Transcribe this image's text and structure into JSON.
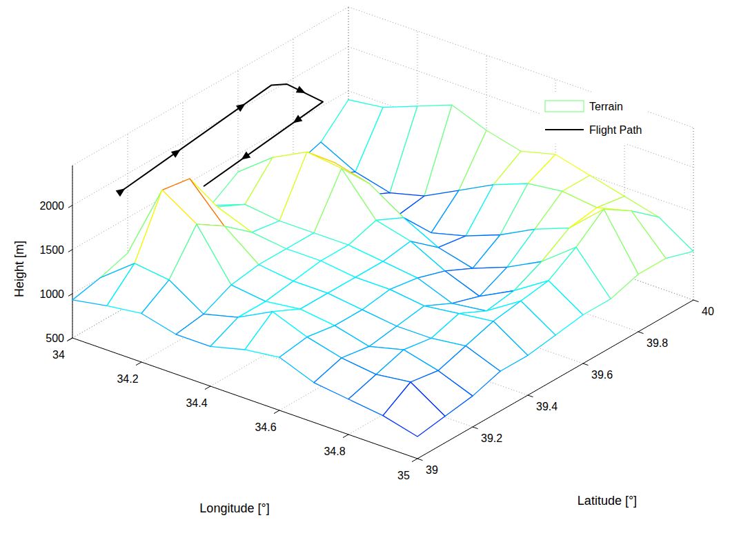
{
  "chart_data": {
    "type": "mesh3d",
    "x_label": "Longitude [°]",
    "y_label": "Latitude [°]",
    "z_label": "Height [m]",
    "xlim": [
      34,
      35
    ],
    "xticks": [
      34,
      34.2,
      34.4,
      34.6,
      34.8,
      35
    ],
    "ylim": [
      39,
      40
    ],
    "yticks": [
      39,
      39.2,
      39.4,
      39.6,
      39.8,
      40
    ],
    "zlim": [
      500,
      2450
    ],
    "zticks": [
      500,
      1000,
      1500,
      2000
    ],
    "grid": true,
    "legend": "northeast",
    "series": [
      {
        "name": "Terrain",
        "type": "mesh",
        "color": "jet",
        "color_range": [
          600,
          2100
        ],
        "x": [
          34,
          34.1,
          34.2,
          34.3,
          34.4,
          34.5,
          34.6,
          34.7,
          34.8,
          34.9,
          35
        ],
        "y": [
          39,
          39.1,
          39.2,
          39.3,
          39.4,
          39.5,
          39.6,
          39.7,
          39.8,
          39.9,
          40
        ],
        "z": [
          [
            930,
            1000,
            1050,
            950,
            950,
            1050,
            1100,
            950,
            900,
            850,
            750
          ],
          [
            1000,
            1300,
            1250,
            1000,
            1100,
            1300,
            1150,
            1050,
            1000,
            1050,
            800
          ],
          [
            1100,
            1950,
            1700,
            1150,
            1100,
            1150,
            1100,
            1000,
            1100,
            1000,
            850
          ],
          [
            1150,
            1900,
            1500,
            1200,
            1150,
            1150,
            1100,
            1050,
            1050,
            1100,
            950
          ],
          [
            1050,
            1400,
            1250,
            1200,
            1200,
            1150,
            1150,
            1100,
            1150,
            1200,
            950
          ],
          [
            1100,
            1250,
            1200,
            1200,
            1200,
            1150,
            1100,
            950,
            1000,
            1250,
            1000
          ],
          [
            1300,
            1600,
            1800,
            1750,
            1300,
            1200,
            1000,
            850,
            1050,
            1300,
            1050
          ],
          [
            1150,
            1350,
            1500,
            1400,
            1150,
            950,
            850,
            1000,
            1200,
            1500,
            1050
          ],
          [
            1000,
            1050,
            950,
            850,
            800,
            900,
            1050,
            1250,
            1400,
            1750,
            1150
          ],
          [
            1100,
            900,
            800,
            900,
            1100,
            1300,
            1450,
            1500,
            1450,
            1550,
            1150
          ],
          [
            1400,
            1450,
            1600,
            1750,
            1600,
            1500,
            1600,
            1500,
            1400,
            1300,
            1050
          ]
        ]
      },
      {
        "name": "Flight Path",
        "type": "line",
        "color": "#000000",
        "marker": "triangle",
        "x": [
          34.127,
          34.065,
          34.09,
          34.21,
          34.26
        ],
        "y": [
          39.016,
          39.64,
          39.665,
          39.645,
          39.15
        ],
        "z": [
          2300,
          2300,
          2300,
          2300,
          2300
        ],
        "arrows": {
          "x": [
            34.127,
            34.105,
            34.078,
            34.135,
            34.221,
            34.242
          ],
          "y": [
            39.016,
            39.244,
            39.513,
            39.658,
            39.539,
            39.325
          ],
          "z": [
            2300,
            2300,
            2300,
            2300,
            2300,
            2300
          ]
        }
      }
    ]
  }
}
